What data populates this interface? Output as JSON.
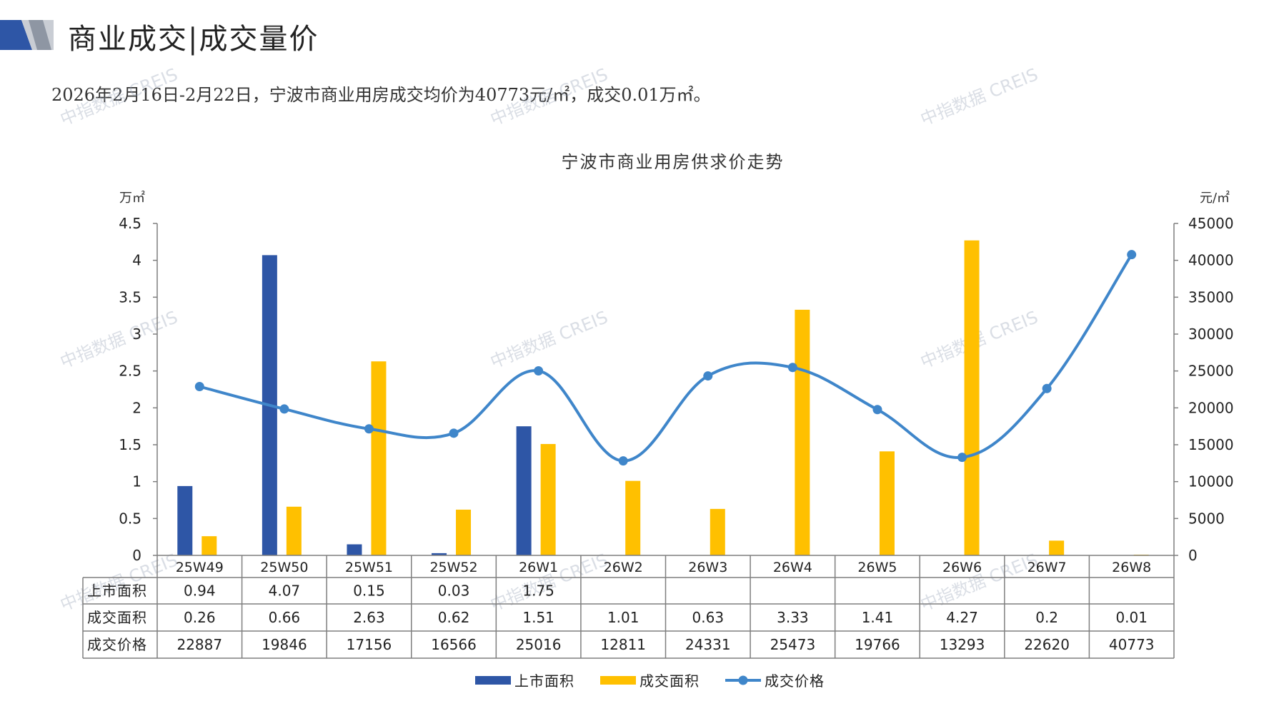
{
  "header": {
    "title": "商业成交|成交量价",
    "summary": "2026年2月16日-2月22日，宁波市商业用房成交均价为40773元/㎡，成交0.01万㎡。"
  },
  "watermark": "中指数据 CREIS",
  "colors": {
    "supply": "#2E56A6",
    "deal_area": "#FFC000",
    "price": "#3F86CA",
    "axis": "#7F7F7F"
  },
  "chart_data": {
    "type": "bar+line+table",
    "title": "宁波市商业用房供求价走势",
    "left_axis_label": "万㎡",
    "right_axis_label": "元/㎡",
    "categories": [
      "25W49",
      "25W50",
      "25W51",
      "25W52",
      "26W1",
      "26W2",
      "26W3",
      "26W4",
      "26W5",
      "26W6",
      "26W7",
      "26W8"
    ],
    "left_ylim": [
      0,
      4.5
    ],
    "left_ticks": [
      "0",
      "0.5",
      "1",
      "1.5",
      "2",
      "2.5",
      "3",
      "3.5",
      "4",
      "4.5"
    ],
    "right_ylim": [
      0,
      45000
    ],
    "right_ticks": [
      "0",
      "5000",
      "10000",
      "15000",
      "20000",
      "25000",
      "30000",
      "35000",
      "40000",
      "45000"
    ],
    "series": [
      {
        "name": "上市面积",
        "type": "bar",
        "axis": "left",
        "values": [
          0.94,
          4.07,
          0.15,
          0.03,
          1.75,
          null,
          null,
          null,
          null,
          null,
          null,
          null
        ],
        "labels": [
          "0.94",
          "4.07",
          "0.15",
          "0.03",
          "1.75",
          "",
          "",
          "",
          "",
          "",
          "",
          ""
        ]
      },
      {
        "name": "成交面积",
        "type": "bar",
        "axis": "left",
        "values": [
          0.26,
          0.66,
          2.63,
          0.62,
          1.51,
          1.01,
          0.63,
          3.33,
          1.41,
          4.27,
          0.2,
          0.01
        ],
        "labels": [
          "0.26",
          "0.66",
          "2.63",
          "0.62",
          "1.51",
          "1.01",
          "0.63",
          "3.33",
          "1.41",
          "4.27",
          "0.2",
          "0.01"
        ]
      },
      {
        "name": "成交价格",
        "type": "line",
        "axis": "right",
        "values": [
          22887,
          19846,
          17156,
          16566,
          25016,
          12811,
          24331,
          25473,
          19766,
          13293,
          22620,
          40773
        ],
        "labels": [
          "22887",
          "19846",
          "17156",
          "16566",
          "25016",
          "12811",
          "24331",
          "25473",
          "19766",
          "13293",
          "22620",
          "40773"
        ]
      }
    ],
    "grid": false,
    "legend_position": "bottom"
  }
}
